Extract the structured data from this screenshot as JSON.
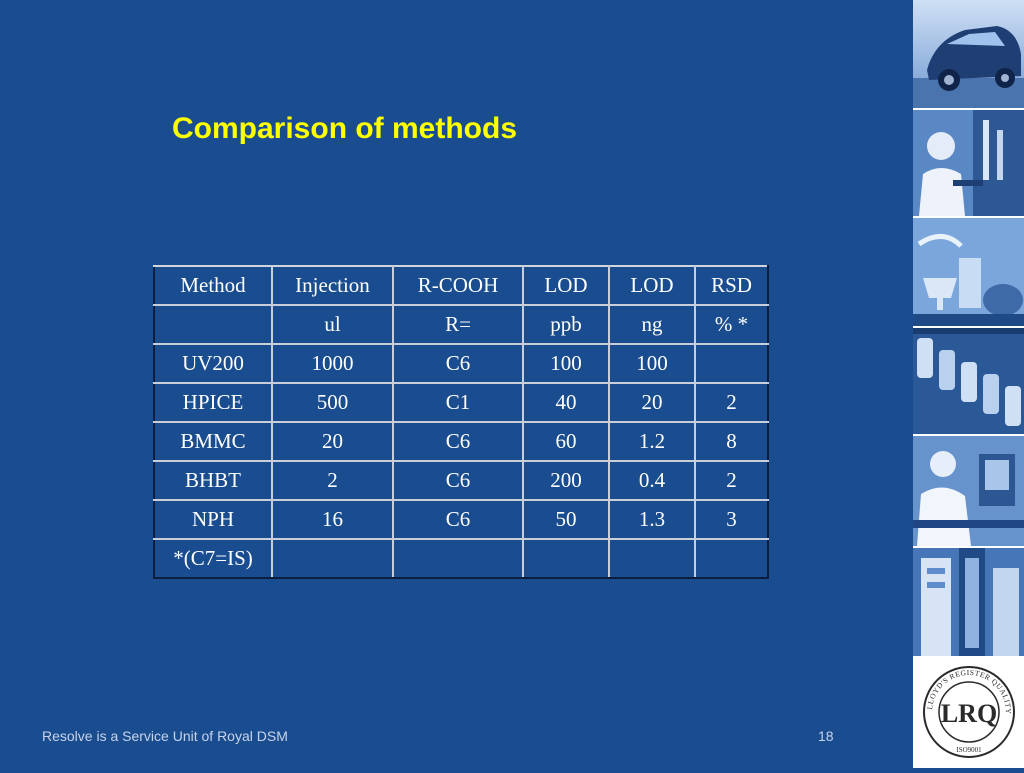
{
  "slide": {
    "title": "Comparison of methods"
  },
  "table": {
    "headers": [
      "Method",
      "Injection",
      "R-COOH",
      "LOD",
      "LOD",
      "RSD"
    ],
    "units": [
      "",
      "ul",
      "R=",
      "ppb",
      "ng",
      "%  *"
    ],
    "rows": [
      [
        "UV200",
        "1000",
        "C6",
        "100",
        "100",
        ""
      ],
      [
        "HPICE",
        "500",
        "C1",
        "40",
        "20",
        "2"
      ],
      [
        "BMMC",
        "20",
        "C6",
        "60",
        "1.2",
        "8"
      ],
      [
        "BHBT",
        "2",
        "C6",
        "200",
        "0.4",
        "2"
      ],
      [
        "NPH",
        "16",
        "C6",
        "50",
        "1.3",
        "3"
      ]
    ],
    "footnote": "*(C7=IS)"
  },
  "footer": {
    "company": "Resolve is a Service Unit of Royal DSM",
    "page_number": "18"
  },
  "sidebar": {
    "photos": [
      "car-photo",
      "lab-scientist-photo",
      "food-products-photo",
      "lab-bottles-photo",
      "lab-worker-photo",
      "lab-equipment-photo"
    ],
    "logo": {
      "ring_text": "LLOYD'S REGISTER QUALITY ASSURANCE",
      "monogram": "LRQ",
      "standard": "ISO9001"
    }
  },
  "colors": {
    "background": "#1a4d8f",
    "title": "#ffff00",
    "table_text": "#ffffff",
    "footer_text": "#c7d3ea"
  }
}
